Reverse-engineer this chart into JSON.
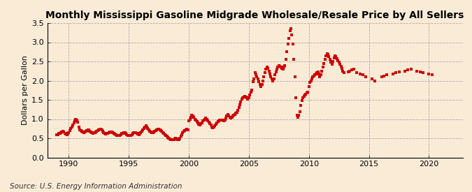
{
  "title": "Monthly Mississippi Gasoline Midgrade Wholesale/Resale Price by All Sellers",
  "ylabel": "Dollars per Gallon",
  "source": "Source: U.S. Energy Information Administration",
  "background_color": "#faebd7",
  "line_color": "#cc0000",
  "marker": "s",
  "markersize": 2.2,
  "xlim": [
    1988.2,
    2022.8
  ],
  "ylim": [
    0.0,
    3.5
  ],
  "yticks": [
    0.0,
    0.5,
    1.0,
    1.5,
    2.0,
    2.5,
    3.0,
    3.5
  ],
  "xticks": [
    1990,
    1995,
    2000,
    2005,
    2010,
    2015,
    2020
  ],
  "grid_color": "#999999",
  "title_fontsize": 10,
  "tick_fontsize": 8,
  "ylabel_fontsize": 8,
  "source_fontsize": 7.5,
  "data": {
    "dates": [
      1989.0,
      1989.083,
      1989.167,
      1989.25,
      1989.333,
      1989.417,
      1989.5,
      1989.583,
      1989.667,
      1989.75,
      1989.833,
      1989.917,
      1990.0,
      1990.083,
      1990.167,
      1990.25,
      1990.333,
      1990.417,
      1990.5,
      1990.583,
      1990.667,
      1990.75,
      1990.833,
      1990.917,
      1991.0,
      1991.083,
      1991.167,
      1991.25,
      1991.333,
      1991.417,
      1991.5,
      1991.583,
      1991.667,
      1991.75,
      1991.833,
      1991.917,
      1992.0,
      1992.083,
      1992.167,
      1992.25,
      1992.333,
      1992.417,
      1992.5,
      1992.583,
      1992.667,
      1992.75,
      1992.833,
      1992.917,
      1993.0,
      1993.083,
      1993.167,
      1993.25,
      1993.333,
      1993.417,
      1993.5,
      1993.583,
      1993.667,
      1993.75,
      1993.833,
      1993.917,
      1994.0,
      1994.083,
      1994.167,
      1994.25,
      1994.333,
      1994.417,
      1994.5,
      1994.583,
      1994.667,
      1994.75,
      1994.833,
      1994.917,
      1995.0,
      1995.083,
      1995.167,
      1995.25,
      1995.333,
      1995.417,
      1995.5,
      1995.583,
      1995.667,
      1995.75,
      1995.833,
      1995.917,
      1996.0,
      1996.083,
      1996.167,
      1996.25,
      1996.333,
      1996.417,
      1996.5,
      1996.583,
      1996.667,
      1996.75,
      1996.833,
      1996.917,
      1997.0,
      1997.083,
      1997.167,
      1997.25,
      1997.333,
      1997.417,
      1997.5,
      1997.583,
      1997.667,
      1997.75,
      1997.833,
      1997.917,
      1998.0,
      1998.083,
      1998.167,
      1998.25,
      1998.333,
      1998.417,
      1998.5,
      1998.583,
      1998.667,
      1998.75,
      1998.833,
      1998.917,
      1999.0,
      1999.083,
      1999.167,
      1999.25,
      1999.333,
      1999.417,
      1999.5,
      1999.583,
      1999.667,
      1999.75,
      1999.833,
      1999.917,
      2000.0,
      2000.083,
      2000.167,
      2000.25,
      2000.333,
      2000.417,
      2000.5,
      2000.583,
      2000.667,
      2000.75,
      2000.833,
      2000.917,
      2001.0,
      2001.083,
      2001.167,
      2001.25,
      2001.333,
      2001.417,
      2001.5,
      2001.583,
      2001.667,
      2001.75,
      2001.833,
      2001.917,
      2002.0,
      2002.083,
      2002.167,
      2002.25,
      2002.333,
      2002.417,
      2002.5,
      2002.583,
      2002.667,
      2002.75,
      2002.833,
      2002.917,
      2003.0,
      2003.083,
      2003.167,
      2003.25,
      2003.333,
      2003.417,
      2003.5,
      2003.583,
      2003.667,
      2003.75,
      2003.833,
      2003.917,
      2004.0,
      2004.083,
      2004.167,
      2004.25,
      2004.333,
      2004.417,
      2004.5,
      2004.583,
      2004.667,
      2004.75,
      2004.833,
      2004.917,
      2005.0,
      2005.083,
      2005.167,
      2005.25,
      2005.333,
      2005.417,
      2005.5,
      2005.583,
      2005.667,
      2005.75,
      2005.833,
      2005.917,
      2006.0,
      2006.083,
      2006.167,
      2006.25,
      2006.333,
      2006.417,
      2006.5,
      2006.583,
      2006.667,
      2006.75,
      2006.833,
      2006.917,
      2007.0,
      2007.083,
      2007.167,
      2007.25,
      2007.333,
      2007.417,
      2007.5,
      2007.583,
      2007.667,
      2007.75,
      2007.833,
      2007.917,
      2008.0,
      2008.083,
      2008.167,
      2008.25,
      2008.333,
      2008.417,
      2008.5,
      2008.583,
      2008.667,
      2008.75,
      2008.833,
      2008.917,
      2009.0,
      2009.083,
      2009.167,
      2009.25,
      2009.333,
      2009.417,
      2009.5,
      2009.583,
      2009.667,
      2009.75,
      2009.833,
      2009.917,
      2010.0,
      2010.083,
      2010.167,
      2010.25,
      2010.333,
      2010.417,
      2010.5,
      2010.583,
      2010.667,
      2010.75,
      2010.833,
      2010.917,
      2011.0,
      2011.083,
      2011.167,
      2011.25,
      2011.333,
      2011.417,
      2011.5,
      2011.583,
      2011.667,
      2011.75,
      2011.833,
      2011.917,
      2012.0,
      2012.083,
      2012.167,
      2012.25,
      2012.333,
      2012.417,
      2012.5,
      2012.583,
      2012.667,
      2012.75,
      2012.833,
      2012.917,
      2013.25,
      2013.417,
      2013.583,
      2013.75,
      2014.0,
      2014.25,
      2014.5,
      2014.75,
      2015.25,
      2015.5,
      2016.083,
      2016.25,
      2016.5,
      2017.0,
      2017.25,
      2017.5,
      2018.0,
      2018.25,
      2018.5,
      2019.0,
      2019.25,
      2019.5,
      2020.0,
      2020.25
    ],
    "values": [
      0.59,
      0.6,
      0.62,
      0.63,
      0.65,
      0.67,
      0.68,
      0.66,
      0.63,
      0.61,
      0.6,
      0.62,
      0.65,
      0.7,
      0.75,
      0.8,
      0.85,
      0.9,
      0.95,
      1.0,
      0.98,
      0.92,
      0.8,
      0.72,
      0.7,
      0.68,
      0.66,
      0.65,
      0.66,
      0.68,
      0.7,
      0.72,
      0.71,
      0.69,
      0.67,
      0.65,
      0.63,
      0.64,
      0.65,
      0.67,
      0.68,
      0.7,
      0.72,
      0.74,
      0.73,
      0.71,
      0.68,
      0.65,
      0.63,
      0.61,
      0.62,
      0.63,
      0.65,
      0.66,
      0.67,
      0.66,
      0.65,
      0.63,
      0.61,
      0.6,
      0.58,
      0.57,
      0.57,
      0.58,
      0.6,
      0.62,
      0.63,
      0.64,
      0.64,
      0.62,
      0.6,
      0.58,
      0.57,
      0.57,
      0.58,
      0.6,
      0.62,
      0.64,
      0.65,
      0.65,
      0.63,
      0.61,
      0.6,
      0.62,
      0.65,
      0.68,
      0.72,
      0.76,
      0.8,
      0.82,
      0.8,
      0.76,
      0.72,
      0.69,
      0.67,
      0.65,
      0.65,
      0.66,
      0.68,
      0.7,
      0.72,
      0.74,
      0.73,
      0.72,
      0.7,
      0.68,
      0.65,
      0.62,
      0.6,
      0.58,
      0.55,
      0.52,
      0.5,
      0.48,
      0.47,
      0.46,
      0.46,
      0.47,
      0.48,
      0.5,
      0.48,
      0.46,
      0.47,
      0.5,
      0.55,
      0.6,
      0.65,
      0.68,
      0.7,
      0.72,
      0.73,
      0.72,
      0.95,
      1.0,
      1.05,
      1.1,
      1.08,
      1.05,
      1.0,
      0.97,
      0.94,
      0.9,
      0.87,
      0.85,
      0.88,
      0.9,
      0.95,
      0.98,
      1.0,
      1.02,
      1.0,
      0.96,
      0.92,
      0.88,
      0.84,
      0.8,
      0.78,
      0.8,
      0.83,
      0.87,
      0.9,
      0.93,
      0.95,
      0.97,
      0.98,
      0.98,
      0.97,
      0.96,
      0.98,
      1.02,
      1.08,
      1.12,
      1.08,
      1.05,
      1.02,
      1.05,
      1.08,
      1.1,
      1.12,
      1.15,
      1.18,
      1.22,
      1.3,
      1.38,
      1.45,
      1.52,
      1.55,
      1.58,
      1.6,
      1.58,
      1.55,
      1.52,
      1.55,
      1.62,
      1.7,
      1.75,
      1.98,
      2.05,
      2.2,
      2.15,
      2.1,
      2.05,
      1.98,
      1.9,
      1.85,
      1.9,
      2.0,
      2.1,
      2.2,
      2.3,
      2.35,
      2.32,
      2.25,
      2.18,
      2.1,
      2.05,
      2.0,
      2.05,
      2.15,
      2.22,
      2.3,
      2.35,
      2.4,
      2.38,
      2.35,
      2.32,
      2.3,
      2.35,
      2.4,
      2.55,
      2.75,
      2.95,
      3.1,
      3.3,
      3.35,
      3.2,
      2.95,
      2.55,
      2.1,
      1.55,
      1.1,
      1.05,
      1.1,
      1.2,
      1.35,
      1.48,
      1.55,
      1.6,
      1.62,
      1.65,
      1.68,
      1.7,
      1.85,
      1.95,
      2.0,
      2.05,
      2.1,
      2.12,
      2.15,
      2.18,
      2.2,
      2.22,
      2.18,
      2.1,
      2.15,
      2.25,
      2.35,
      2.45,
      2.55,
      2.65,
      2.7,
      2.68,
      2.62,
      2.55,
      2.48,
      2.42,
      2.5,
      2.6,
      2.65,
      2.62,
      2.58,
      2.52,
      2.48,
      2.42,
      2.38,
      2.32,
      2.25,
      2.2,
      2.22,
      2.25,
      2.28,
      2.3,
      2.2,
      2.18,
      2.15,
      2.1,
      2.05,
      2.0,
      2.1,
      2.12,
      2.15,
      2.18,
      2.2,
      2.22,
      2.25,
      2.28,
      2.3,
      2.25,
      2.22,
      2.2,
      2.18,
      2.15
    ]
  }
}
